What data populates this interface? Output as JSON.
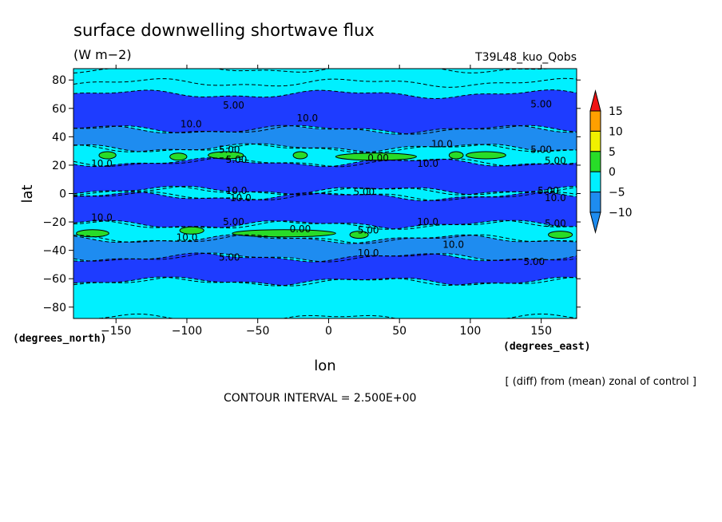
{
  "chart_data": {
    "type": "heatmap",
    "title": "surface downwelling shortwave flux",
    "units": "(W m−2)",
    "subtitle": "T39L48_kuo_Qobs",
    "xlabel": "lon",
    "ylabel": "lat",
    "x_units_label": "(degrees_east)",
    "y_units_label": "(degrees_north)",
    "x_ticks": [
      -150,
      -100,
      -50,
      0,
      50,
      100,
      150
    ],
    "x_tick_labels": [
      "−150",
      "−100",
      "−50",
      "0",
      "50",
      "100",
      "150"
    ],
    "y_ticks": [
      80,
      60,
      40,
      20,
      0,
      -20,
      -40,
      -60,
      -80
    ],
    "y_tick_labels": [
      "80",
      "60",
      "40",
      "20",
      "0",
      "−20",
      "−40",
      "−60",
      "−80"
    ],
    "xlim": [
      -180,
      175
    ],
    "ylim": [
      -88,
      88
    ],
    "contour_interval_text": "CONTOUR INTERVAL = 2.500E+00",
    "note": "[ (diff) from (mean) zonal of control ]",
    "colorbar": {
      "labels": [
        "15",
        "10",
        "5",
        "0",
        "−5",
        "−10"
      ],
      "levels": [
        -10,
        -5,
        0,
        5,
        10,
        15
      ],
      "colors": {
        "below_min": "#1e8cf0",
        "lt_m10": "#1e8cf0",
        "m10_m5": "#1e8cf0",
        "m5_0": "#00f0ff",
        "0_5": "#28dc28",
        "5_10": "#f0f000",
        "10_15": "#ffa000",
        "above_max": "#f01414"
      }
    },
    "field_colors": {
      "lt_m10": "#1e3cff",
      "m10_m5": "#1e8cf0",
      "m5_0": "#00f0ff",
      "0_5": "#28dc28"
    },
    "bands": [
      {
        "lat_min": 78,
        "lat_max": 88,
        "value_class": "m5_0"
      },
      {
        "lat_min": 45,
        "lat_max": 70,
        "value_class": "lt_m10"
      },
      {
        "lat_min": 32,
        "lat_max": 45,
        "value_class": "m10_m5"
      },
      {
        "lat_min": 22,
        "lat_max": 32,
        "value_class": "m5_0"
      },
      {
        "lat_min": 2,
        "lat_max": 22,
        "value_class": "lt_m10"
      },
      {
        "lat_min": -2,
        "lat_max": 2,
        "value_class": "m5_0"
      },
      {
        "lat_min": -22,
        "lat_max": -2,
        "value_class": "lt_m10"
      },
      {
        "lat_min": -32,
        "lat_max": -22,
        "value_class": "m5_0"
      },
      {
        "lat_min": -45,
        "lat_max": -32,
        "value_class": "m10_m5"
      },
      {
        "lat_min": -62,
        "lat_max": -45,
        "value_class": "lt_m10"
      },
      {
        "lat_min": -88,
        "lat_max": -62,
        "value_class": "m5_0"
      }
    ],
    "green_patches": [
      {
        "lon_min": -162,
        "lon_max": -150,
        "lat": 27
      },
      {
        "lon_min": -112,
        "lon_max": -100,
        "lat": 26
      },
      {
        "lon_min": -85,
        "lon_max": -60,
        "lat": 27
      },
      {
        "lon_min": -25,
        "lon_max": -15,
        "lat": 27
      },
      {
        "lon_min": 5,
        "lon_max": 62,
        "lat": 26
      },
      {
        "lon_min": 85,
        "lon_max": 95,
        "lat": 27
      },
      {
        "lon_min": 97,
        "lon_max": 125,
        "lat": 27
      },
      {
        "lon_min": -178,
        "lon_max": -155,
        "lat": -28
      },
      {
        "lon_min": -105,
        "lon_max": -88,
        "lat": -26
      },
      {
        "lon_min": -68,
        "lon_max": 5,
        "lat": -28
      },
      {
        "lon_min": 15,
        "lon_max": 28,
        "lat": -29
      },
      {
        "lon_min": 155,
        "lon_max": 172,
        "lat": -29
      }
    ],
    "contour_labels": [
      {
        "text": "5.00",
        "lon": -67,
        "lat": 62
      },
      {
        "text": "10.0",
        "lon": -97,
        "lat": 49
      },
      {
        "text": "10.0",
        "lon": -15,
        "lat": 53
      },
      {
        "text": "5.00",
        "lon": 150,
        "lat": 63
      },
      {
        "text": "5.00",
        "lon": -70,
        "lat": 31
      },
      {
        "text": "10.0",
        "lon": 80,
        "lat": 35
      },
      {
        "text": "5.00",
        "lon": 150,
        "lat": 31
      },
      {
        "text": "10.0",
        "lon": -160,
        "lat": 21
      },
      {
        "text": "5.00",
        "lon": -65,
        "lat": 24
      },
      {
        "text": "0.00",
        "lon": 35,
        "lat": 25
      },
      {
        "text": "10.0",
        "lon": 70,
        "lat": 21
      },
      {
        "text": "5.00",
        "lon": 160,
        "lat": 23
      },
      {
        "text": "10.0",
        "lon": -65,
        "lat": 2
      },
      {
        "text": "10.0",
        "lon": -62,
        "lat": -3
      },
      {
        "text": "5.00",
        "lon": 25,
        "lat": 1
      },
      {
        "text": "5.00",
        "lon": 155,
        "lat": 2
      },
      {
        "text": "10.0",
        "lon": 160,
        "lat": -3
      },
      {
        "text": "10.0",
        "lon": -160,
        "lat": -17
      },
      {
        "text": "5.00",
        "lon": -67,
        "lat": -20
      },
      {
        "text": "10.0",
        "lon": 70,
        "lat": -20
      },
      {
        "text": "5.00",
        "lon": 160,
        "lat": -21
      },
      {
        "text": "0.00",
        "lon": -20,
        "lat": -25
      },
      {
        "text": "5.00",
        "lon": 28,
        "lat": -26
      },
      {
        "text": "10.0",
        "lon": -100,
        "lat": -31
      },
      {
        "text": "10.0",
        "lon": 88,
        "lat": -36
      },
      {
        "text": "5.00",
        "lon": -70,
        "lat": -45
      },
      {
        "text": "10.0",
        "lon": 28,
        "lat": -42
      },
      {
        "text": "5.00",
        "lon": 145,
        "lat": -48
      }
    ]
  }
}
